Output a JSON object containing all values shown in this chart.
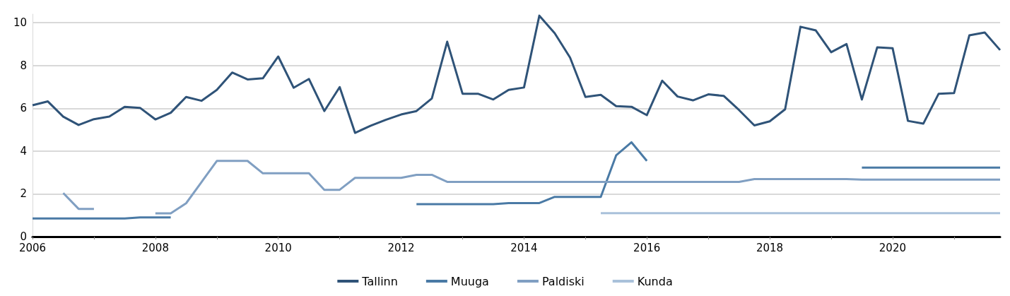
{
  "chart_data": {
    "type": "line",
    "x": [
      2006,
      2006.25,
      2006.5,
      2006.75,
      2007,
      2007.25,
      2007.5,
      2007.75,
      2008,
      2008.25,
      2008.5,
      2008.75,
      2009,
      2009.25,
      2009.5,
      2009.75,
      2010,
      2010.25,
      2010.5,
      2010.75,
      2011,
      2011.25,
      2011.5,
      2011.75,
      2012,
      2012.25,
      2012.5,
      2012.75,
      2013,
      2013.25,
      2013.5,
      2013.75,
      2014,
      2014.25,
      2014.5,
      2014.75,
      2015,
      2015.25,
      2015.5,
      2015.75,
      2016,
      2016.25,
      2016.5,
      2016.75,
      2017,
      2017.25,
      2017.5,
      2017.75,
      2018,
      2018.25,
      2018.5,
      2018.75,
      2019,
      2019.25,
      2019.5,
      2019.75,
      2020,
      2020.25,
      2020.5,
      2020.75,
      2021,
      2021.25,
      2021.5,
      2021.75
    ],
    "series": [
      {
        "name": "Tallinn",
        "color": "#2f5378",
        "values": [
          6.14,
          6.32,
          5.61,
          5.22,
          5.49,
          5.61,
          6.07,
          6.02,
          5.48,
          5.79,
          6.53,
          6.35,
          6.86,
          7.67,
          7.35,
          7.4,
          8.42,
          6.96,
          7.37,
          5.87,
          6.99,
          4.85,
          5.18,
          5.46,
          5.71,
          5.87,
          6.46,
          9.11,
          6.68,
          6.68,
          6.41,
          6.86,
          6.97,
          10.33,
          9.51,
          8.37,
          6.53,
          6.63,
          6.1,
          6.07,
          5.68,
          7.29,
          6.55,
          6.37,
          6.65,
          6.58,
          5.92,
          5.2,
          5.39,
          5.95,
          9.81,
          9.64,
          8.62,
          9,
          6.41,
          8.85,
          8.81,
          5.41,
          5.28,
          6.68,
          6.71,
          9.41,
          9.54,
          8.72
        ]
      },
      {
        "name": "Muuga",
        "color": "#4a7aa5",
        "values": [
          0.85,
          0.85,
          0.85,
          0.85,
          0.85,
          0.85,
          0.85,
          0.9,
          0.9,
          0.9,
          null,
          null,
          null,
          null,
          null,
          null,
          null,
          null,
          null,
          null,
          null,
          null,
          null,
          null,
          null,
          1.52,
          1.52,
          1.52,
          1.52,
          1.52,
          1.52,
          1.57,
          1.57,
          1.57,
          1.86,
          1.86,
          1.86,
          1.86,
          3.8,
          4.41,
          3.54,
          null,
          null,
          null,
          null,
          null,
          null,
          null,
          null,
          null,
          null,
          null,
          null,
          null,
          3.23,
          3.23,
          3.23,
          3.23,
          3.23,
          3.23,
          3.23,
          3.23,
          3.23,
          3.23
        ]
      },
      {
        "name": "Paldiski",
        "color": "#809fc2",
        "values": [
          null,
          null,
          2.04,
          1.3,
          1.3,
          null,
          null,
          null,
          1.09,
          1.09,
          1.56,
          2.55,
          3.54,
          3.54,
          3.54,
          2.96,
          2.96,
          2.96,
          2.96,
          2.19,
          2.19,
          2.75,
          2.75,
          2.75,
          2.75,
          2.89,
          2.89,
          2.56,
          2.56,
          2.56,
          2.56,
          2.56,
          2.56,
          2.56,
          2.56,
          2.56,
          2.56,
          2.56,
          2.56,
          2.56,
          2.56,
          2.56,
          2.56,
          2.56,
          2.56,
          2.56,
          2.56,
          2.69,
          2.69,
          2.69,
          2.69,
          2.69,
          2.69,
          2.69,
          2.67,
          2.67,
          2.67,
          2.67,
          2.67,
          2.67,
          2.67,
          2.67,
          2.67,
          2.67
        ]
      },
      {
        "name": "Kunda",
        "color": "#a9c1da",
        "values": [
          null,
          null,
          null,
          null,
          null,
          null,
          null,
          null,
          null,
          null,
          null,
          null,
          null,
          null,
          null,
          null,
          null,
          null,
          null,
          null,
          null,
          null,
          null,
          null,
          null,
          null,
          null,
          null,
          null,
          null,
          null,
          null,
          null,
          null,
          null,
          null,
          null,
          1.1,
          1.1,
          1.1,
          1.1,
          1.1,
          1.1,
          1.1,
          1.1,
          1.1,
          1.1,
          1.1,
          1.1,
          1.1,
          1.1,
          1.1,
          1.1,
          1.1,
          1.1,
          1.1,
          1.1,
          1.1,
          1.1,
          1.1,
          1.1,
          1.1,
          1.1,
          1.1
        ]
      }
    ],
    "xlim": [
      2006,
      2021.75
    ],
    "xticks": [
      2006,
      {
        "value": 2007,
        "label": null
      },
      2008,
      {
        "value": 2009,
        "label": null
      },
      2010,
      {
        "value": 2011,
        "label": null
      },
      2012,
      {
        "value": 2013,
        "label": null
      },
      2014,
      {
        "value": 2015,
        "label": null
      },
      2016,
      {
        "value": 2017,
        "label": null
      },
      2018,
      {
        "value": 2019,
        "label": null
      },
      2020,
      {
        "value": 2021,
        "label": null
      }
    ],
    "ylim": [
      0,
      10.4
    ],
    "yticks": [
      0,
      2,
      4,
      6,
      8,
      10
    ],
    "grid": "y",
    "legend": "bottom",
    "marker": "none",
    "line_style": "solid"
  }
}
